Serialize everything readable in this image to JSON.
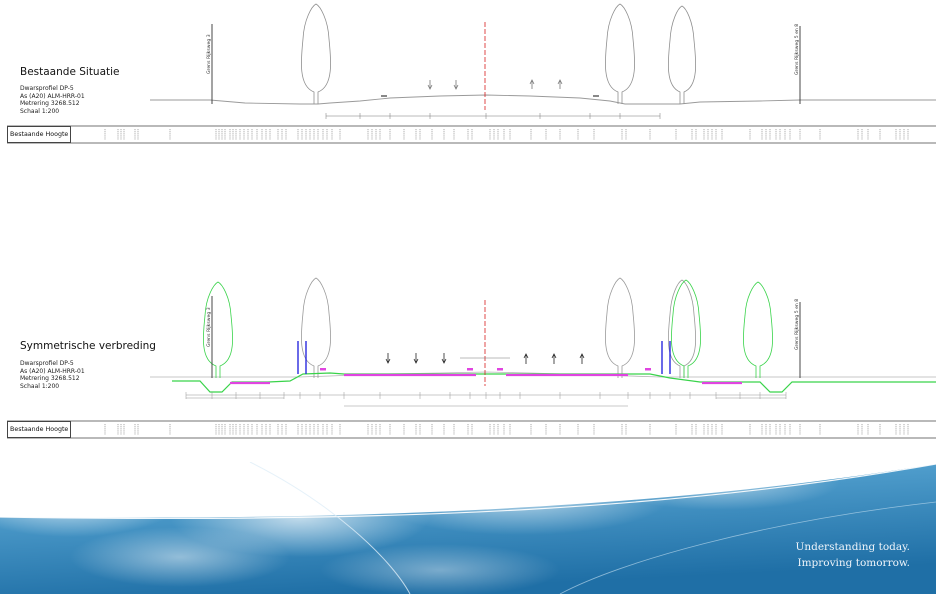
{
  "sections": [
    {
      "title": "Bestaande Situatie",
      "details": [
        "Dwarsprofiel DP-5",
        "As (A20) ALM-HRR-01",
        "Metrering 3268.512",
        "Schaal 1:200"
      ],
      "height_row_label": "Bestaande Hoogte",
      "left_marker": "Grens Rijksweg 3",
      "right_marker": "Grens Rijksweg 5 en 8"
    },
    {
      "title": "Symmetrische verbreding",
      "details": [
        "Dwarsprofiel DP-5",
        "As (A20) ALM-HRR-01",
        "Metrering 3268.512",
        "Schaal 1:200"
      ],
      "height_row_label": "Bestaande Hoogte",
      "left_marker": "Grens Rijksweg 3",
      "right_marker": "Grens Rijksweg 5 en 8"
    }
  ],
  "tagline": [
    "Understanding today.",
    "Improving tomorrow."
  ],
  "colors": {
    "existing_line": "#9a9a9a",
    "new_design": "#39d34a",
    "pavement_new": "#e044e0",
    "center_axis": "#d81e1e",
    "barrier": "#2a2adf",
    "banner_sky": "#3f93c4"
  },
  "icons": [
    "tree-icon",
    "lane-direction-arrow-icon",
    "boundary-post-icon"
  ]
}
